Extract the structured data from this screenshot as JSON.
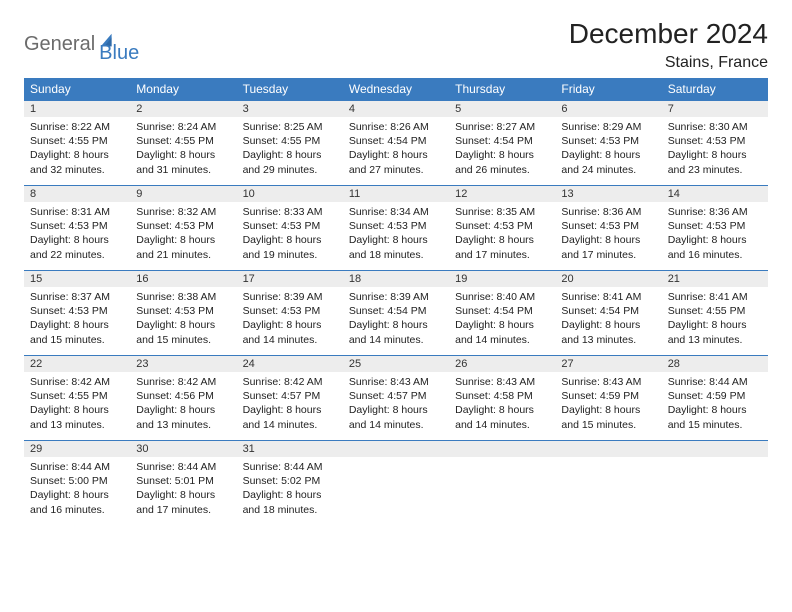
{
  "brand": {
    "part1": "General",
    "part2": "Blue",
    "color1": "#6b6b6b",
    "color2": "#3a7bbf"
  },
  "title": "December 2024",
  "location": "Stains, France",
  "colors": {
    "header_bg": "#3a7bbf",
    "header_text": "#ffffff",
    "daynum_bg": "#ededed",
    "daynum_border": "#3a7bbf",
    "page_bg": "#ffffff",
    "text": "#222222"
  },
  "fonts": {
    "title_size": 28,
    "location_size": 16,
    "weekday_size": 12,
    "daynum_size": 11,
    "cell_size": 10.5,
    "family": "Arial"
  },
  "weekdays": [
    "Sunday",
    "Monday",
    "Tuesday",
    "Wednesday",
    "Thursday",
    "Friday",
    "Saturday"
  ],
  "weeks": [
    [
      {
        "day": "1",
        "sunrise": "Sunrise: 8:22 AM",
        "sunset": "Sunset: 4:55 PM",
        "daylight1": "Daylight: 8 hours",
        "daylight2": "and 32 minutes."
      },
      {
        "day": "2",
        "sunrise": "Sunrise: 8:24 AM",
        "sunset": "Sunset: 4:55 PM",
        "daylight1": "Daylight: 8 hours",
        "daylight2": "and 31 minutes."
      },
      {
        "day": "3",
        "sunrise": "Sunrise: 8:25 AM",
        "sunset": "Sunset: 4:55 PM",
        "daylight1": "Daylight: 8 hours",
        "daylight2": "and 29 minutes."
      },
      {
        "day": "4",
        "sunrise": "Sunrise: 8:26 AM",
        "sunset": "Sunset: 4:54 PM",
        "daylight1": "Daylight: 8 hours",
        "daylight2": "and 27 minutes."
      },
      {
        "day": "5",
        "sunrise": "Sunrise: 8:27 AM",
        "sunset": "Sunset: 4:54 PM",
        "daylight1": "Daylight: 8 hours",
        "daylight2": "and 26 minutes."
      },
      {
        "day": "6",
        "sunrise": "Sunrise: 8:29 AM",
        "sunset": "Sunset: 4:53 PM",
        "daylight1": "Daylight: 8 hours",
        "daylight2": "and 24 minutes."
      },
      {
        "day": "7",
        "sunrise": "Sunrise: 8:30 AM",
        "sunset": "Sunset: 4:53 PM",
        "daylight1": "Daylight: 8 hours",
        "daylight2": "and 23 minutes."
      }
    ],
    [
      {
        "day": "8",
        "sunrise": "Sunrise: 8:31 AM",
        "sunset": "Sunset: 4:53 PM",
        "daylight1": "Daylight: 8 hours",
        "daylight2": "and 22 minutes."
      },
      {
        "day": "9",
        "sunrise": "Sunrise: 8:32 AM",
        "sunset": "Sunset: 4:53 PM",
        "daylight1": "Daylight: 8 hours",
        "daylight2": "and 21 minutes."
      },
      {
        "day": "10",
        "sunrise": "Sunrise: 8:33 AM",
        "sunset": "Sunset: 4:53 PM",
        "daylight1": "Daylight: 8 hours",
        "daylight2": "and 19 minutes."
      },
      {
        "day": "11",
        "sunrise": "Sunrise: 8:34 AM",
        "sunset": "Sunset: 4:53 PM",
        "daylight1": "Daylight: 8 hours",
        "daylight2": "and 18 minutes."
      },
      {
        "day": "12",
        "sunrise": "Sunrise: 8:35 AM",
        "sunset": "Sunset: 4:53 PM",
        "daylight1": "Daylight: 8 hours",
        "daylight2": "and 17 minutes."
      },
      {
        "day": "13",
        "sunrise": "Sunrise: 8:36 AM",
        "sunset": "Sunset: 4:53 PM",
        "daylight1": "Daylight: 8 hours",
        "daylight2": "and 17 minutes."
      },
      {
        "day": "14",
        "sunrise": "Sunrise: 8:36 AM",
        "sunset": "Sunset: 4:53 PM",
        "daylight1": "Daylight: 8 hours",
        "daylight2": "and 16 minutes."
      }
    ],
    [
      {
        "day": "15",
        "sunrise": "Sunrise: 8:37 AM",
        "sunset": "Sunset: 4:53 PM",
        "daylight1": "Daylight: 8 hours",
        "daylight2": "and 15 minutes."
      },
      {
        "day": "16",
        "sunrise": "Sunrise: 8:38 AM",
        "sunset": "Sunset: 4:53 PM",
        "daylight1": "Daylight: 8 hours",
        "daylight2": "and 15 minutes."
      },
      {
        "day": "17",
        "sunrise": "Sunrise: 8:39 AM",
        "sunset": "Sunset: 4:53 PM",
        "daylight1": "Daylight: 8 hours",
        "daylight2": "and 14 minutes."
      },
      {
        "day": "18",
        "sunrise": "Sunrise: 8:39 AM",
        "sunset": "Sunset: 4:54 PM",
        "daylight1": "Daylight: 8 hours",
        "daylight2": "and 14 minutes."
      },
      {
        "day": "19",
        "sunrise": "Sunrise: 8:40 AM",
        "sunset": "Sunset: 4:54 PM",
        "daylight1": "Daylight: 8 hours",
        "daylight2": "and 14 minutes."
      },
      {
        "day": "20",
        "sunrise": "Sunrise: 8:41 AM",
        "sunset": "Sunset: 4:54 PM",
        "daylight1": "Daylight: 8 hours",
        "daylight2": "and 13 minutes."
      },
      {
        "day": "21",
        "sunrise": "Sunrise: 8:41 AM",
        "sunset": "Sunset: 4:55 PM",
        "daylight1": "Daylight: 8 hours",
        "daylight2": "and 13 minutes."
      }
    ],
    [
      {
        "day": "22",
        "sunrise": "Sunrise: 8:42 AM",
        "sunset": "Sunset: 4:55 PM",
        "daylight1": "Daylight: 8 hours",
        "daylight2": "and 13 minutes."
      },
      {
        "day": "23",
        "sunrise": "Sunrise: 8:42 AM",
        "sunset": "Sunset: 4:56 PM",
        "daylight1": "Daylight: 8 hours",
        "daylight2": "and 13 minutes."
      },
      {
        "day": "24",
        "sunrise": "Sunrise: 8:42 AM",
        "sunset": "Sunset: 4:57 PM",
        "daylight1": "Daylight: 8 hours",
        "daylight2": "and 14 minutes."
      },
      {
        "day": "25",
        "sunrise": "Sunrise: 8:43 AM",
        "sunset": "Sunset: 4:57 PM",
        "daylight1": "Daylight: 8 hours",
        "daylight2": "and 14 minutes."
      },
      {
        "day": "26",
        "sunrise": "Sunrise: 8:43 AM",
        "sunset": "Sunset: 4:58 PM",
        "daylight1": "Daylight: 8 hours",
        "daylight2": "and 14 minutes."
      },
      {
        "day": "27",
        "sunrise": "Sunrise: 8:43 AM",
        "sunset": "Sunset: 4:59 PM",
        "daylight1": "Daylight: 8 hours",
        "daylight2": "and 15 minutes."
      },
      {
        "day": "28",
        "sunrise": "Sunrise: 8:44 AM",
        "sunset": "Sunset: 4:59 PM",
        "daylight1": "Daylight: 8 hours",
        "daylight2": "and 15 minutes."
      }
    ],
    [
      {
        "day": "29",
        "sunrise": "Sunrise: 8:44 AM",
        "sunset": "Sunset: 5:00 PM",
        "daylight1": "Daylight: 8 hours",
        "daylight2": "and 16 minutes."
      },
      {
        "day": "30",
        "sunrise": "Sunrise: 8:44 AM",
        "sunset": "Sunset: 5:01 PM",
        "daylight1": "Daylight: 8 hours",
        "daylight2": "and 17 minutes."
      },
      {
        "day": "31",
        "sunrise": "Sunrise: 8:44 AM",
        "sunset": "Sunset: 5:02 PM",
        "daylight1": "Daylight: 8 hours",
        "daylight2": "and 18 minutes."
      },
      {
        "empty": true
      },
      {
        "empty": true
      },
      {
        "empty": true
      },
      {
        "empty": true
      }
    ]
  ]
}
